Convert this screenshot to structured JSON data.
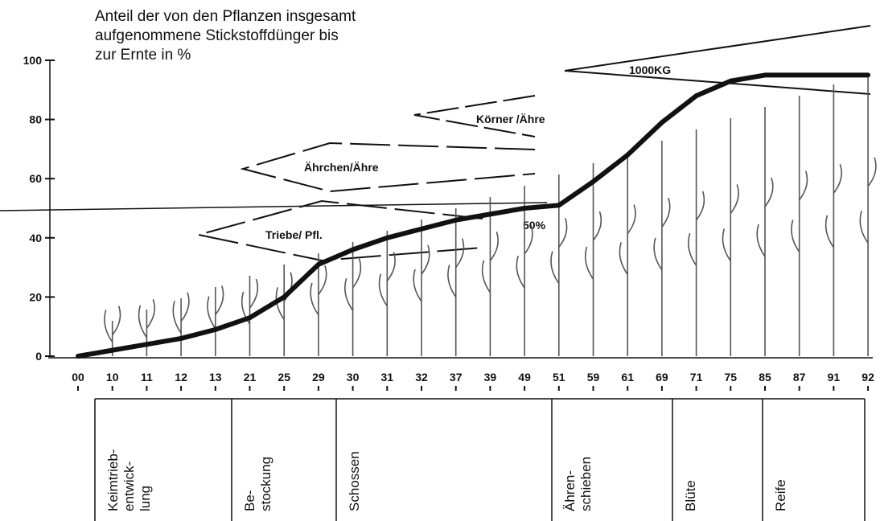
{
  "chart_data": {
    "type": "line",
    "ylabel": [
      "Anteil der von den Pflanzen insgesamt",
      "aufgenommene Stickstoffdünger bis",
      "zur Ernte in %"
    ],
    "annotations": [
      "1000KG",
      "Körner /Ähre",
      "Ährchen/Ähre",
      "Triebe/ Pfl.",
      "50%"
    ],
    "categories": [
      "00",
      "10",
      "11",
      "12",
      "13",
      "21",
      "25",
      "29",
      "30",
      "31",
      "32",
      "37",
      "39",
      "49",
      "51",
      "59",
      "61",
      "69",
      "71",
      "75",
      "85",
      "87",
      "91",
      "92"
    ],
    "values": [
      0,
      2,
      4,
      6,
      9,
      13,
      20,
      31,
      36,
      40,
      43,
      46,
      48,
      50,
      51,
      59,
      68,
      79,
      88,
      93,
      95,
      95,
      95,
      95
    ],
    "color": "#111111",
    "ylim": [
      0,
      100
    ],
    "yticks": [
      0,
      20,
      40,
      60,
      80,
      100
    ],
    "stages": [
      [
        "Keimtrieb-",
        "entwick-",
        "lung"
      ],
      [
        "Be-",
        "stockung"
      ],
      [
        "Schossen"
      ],
      [
        "Ähren-",
        "schieben"
      ],
      [
        "Blüte"
      ],
      [
        "Reife"
      ]
    ]
  }
}
